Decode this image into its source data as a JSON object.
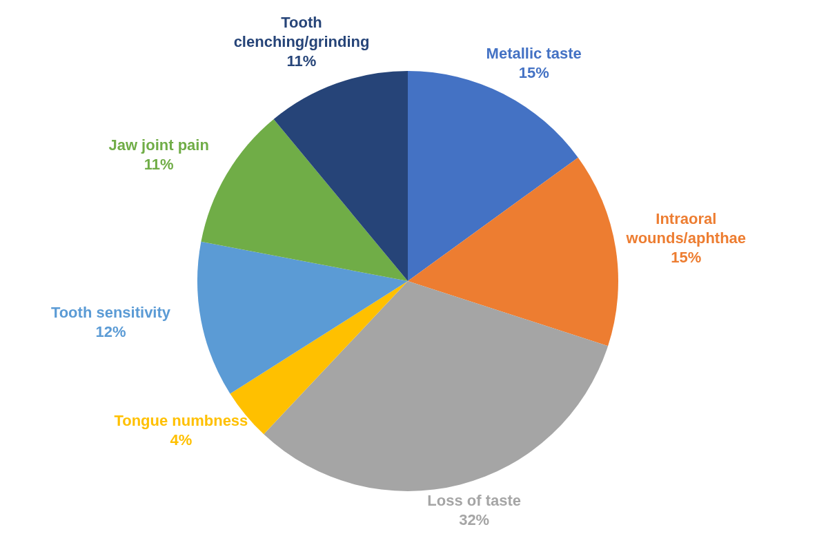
{
  "chart_data": {
    "type": "pie",
    "categories": [
      "Metallic taste",
      "Intraoral wounds/aphthae",
      "Loss of taste",
      "Tongue numbness",
      "Tooth sensitivity",
      "Jaw joint pain",
      "Tooth clenching/grinding"
    ],
    "values": [
      15,
      15,
      32,
      4,
      12,
      11,
      11
    ],
    "colors": [
      "#4472c4",
      "#ed7d31",
      "#a5a5a5",
      "#ffc000",
      "#5b9bd5",
      "#70ad47",
      "#264478"
    ],
    "value_labels": [
      "15%",
      "15%",
      "32%",
      "4%",
      "12%",
      "11%",
      "11%"
    ],
    "legend": false
  }
}
